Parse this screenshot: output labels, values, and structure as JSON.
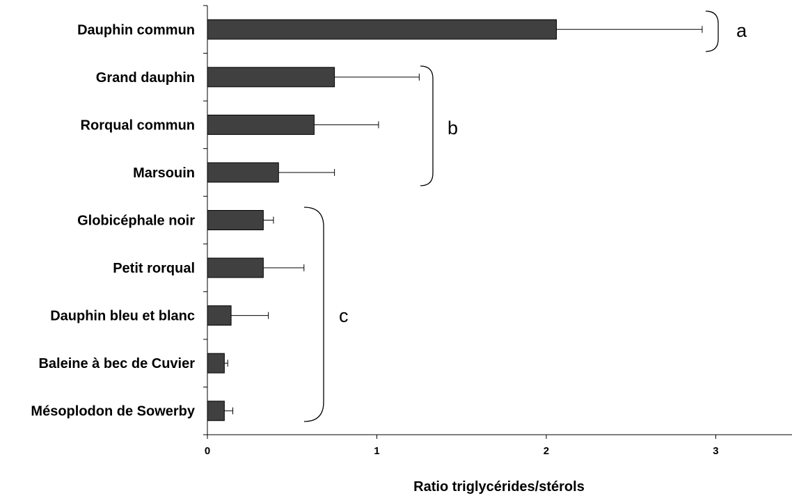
{
  "chart_data": {
    "type": "bar",
    "orientation": "horizontal",
    "categories": [
      "Dauphin commun",
      "Grand dauphin",
      "Rorqual commun",
      "Marsouin",
      "Globicéphale noir",
      "Petit rorqual",
      "Dauphin bleu et blanc",
      "Baleine à bec de Cuvier",
      "Mésoplodon de Sowerby"
    ],
    "values": [
      2.06,
      0.75,
      0.63,
      0.42,
      0.33,
      0.33,
      0.14,
      0.1,
      0.1
    ],
    "error_plus": [
      0.86,
      0.5,
      0.38,
      0.33,
      0.06,
      0.24,
      0.22,
      0.02,
      0.05
    ],
    "xlabel": "Ratio triglycérides/stérols",
    "ylabel": "",
    "xlim": [
      0,
      3.45
    ],
    "xticks": [
      "0",
      "1",
      "2",
      "3"
    ],
    "bar_color": "#404040",
    "grid": false,
    "groups": [
      {
        "label": "a",
        "from": 0,
        "to": 0
      },
      {
        "label": "b",
        "from": 1,
        "to": 3
      },
      {
        "label": "c",
        "from": 4,
        "to": 8
      }
    ]
  }
}
